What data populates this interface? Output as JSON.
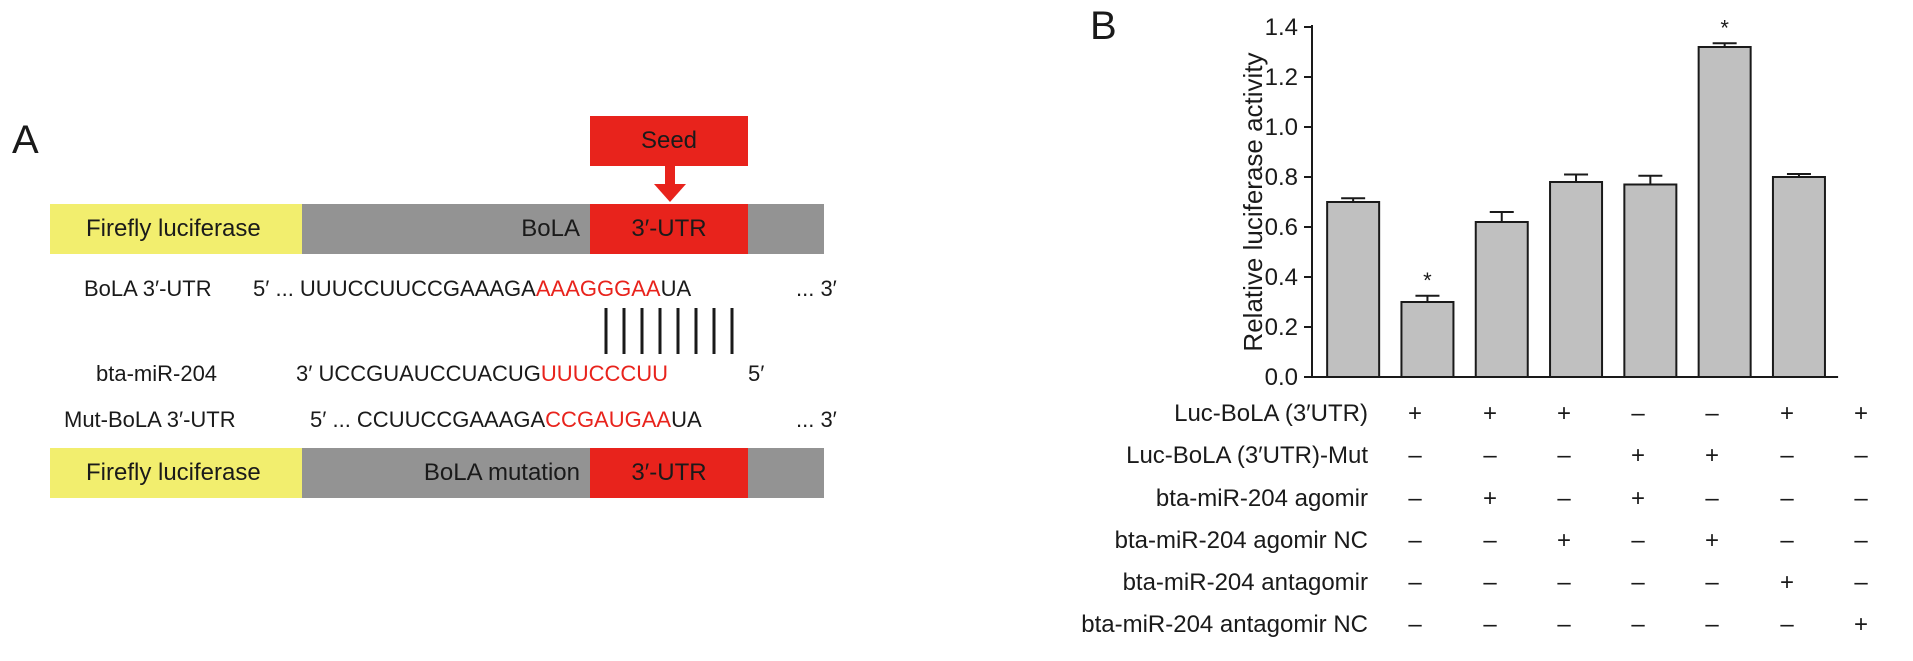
{
  "panel_a": {
    "letter": "A",
    "seed_label": "Seed",
    "top_construct": {
      "luciferase": "Firefly luciferase",
      "gene": "BoLA",
      "utr": "3′-UTR"
    },
    "bottom_construct": {
      "luciferase": "Firefly luciferase",
      "gene": "BoLA mutation",
      "utr": "3′-UTR"
    },
    "seq_bola": {
      "label": "BoLA 3′-UTR",
      "prefix": "5′ ... UUUCCUUCCGAAAGA",
      "seed": "AAAGGGAA",
      "suffix": "UA",
      "end": "... 3′"
    },
    "seq_mir": {
      "label": "bta-miR-204",
      "prefix": "3′ UCCGUAUCCUACUG",
      "seed": "UUUCCCUU",
      "end": "5′"
    },
    "seq_mut": {
      "label": "Mut-BoLA 3′-UTR",
      "prefix": "5′ ... CCUUCCGAAAGA",
      "seed": "CCGAUGAA",
      "suffix": "UA",
      "end": "... 3′"
    }
  },
  "panel_b": {
    "letter": "B",
    "conditions": [
      {
        "label": "Luc-BoLA (3′UTR)",
        "signs": [
          "+",
          "+",
          "+",
          "–",
          "–",
          "+",
          "+"
        ]
      },
      {
        "label": "Luc-BoLA (3′UTR)-Mut",
        "signs": [
          "–",
          "–",
          "–",
          "+",
          "+",
          "–",
          "–"
        ]
      },
      {
        "label": "bta-miR-204 agomir",
        "signs": [
          "–",
          "+",
          "–",
          "+",
          "–",
          "–",
          "–"
        ]
      },
      {
        "label": "bta-miR-204 agomir NC",
        "signs": [
          "–",
          "–",
          "+",
          "–",
          "+",
          "–",
          "–"
        ]
      },
      {
        "label": "bta-miR-204 antagomir",
        "signs": [
          "–",
          "–",
          "–",
          "–",
          "–",
          "+",
          "–"
        ]
      },
      {
        "label": "bta-miR-204 antagomir NC",
        "signs": [
          "–",
          "–",
          "–",
          "–",
          "–",
          "–",
          "+"
        ]
      }
    ]
  },
  "chart_data": {
    "type": "bar",
    "ylabel": "Relative luciferase activity",
    "ylim": [
      0,
      1.4
    ],
    "yticks": [
      "0.0",
      "0.2",
      "0.4",
      "0.6",
      "0.8",
      "1.0",
      "1.2",
      "1.4"
    ],
    "values": [
      0.7,
      0.3,
      0.62,
      0.78,
      0.77,
      1.32,
      0.8
    ],
    "errors": [
      0.015,
      0.025,
      0.04,
      0.03,
      0.035,
      0.015,
      0.012
    ],
    "significance": [
      "",
      "*",
      "",
      "",
      "",
      "*",
      ""
    ],
    "bar_color": "#c0c0c0",
    "grid": false
  },
  "colors": {
    "luciferase": "#f2ee6e",
    "gene": "#939393",
    "accent_red": "#e8231c"
  }
}
